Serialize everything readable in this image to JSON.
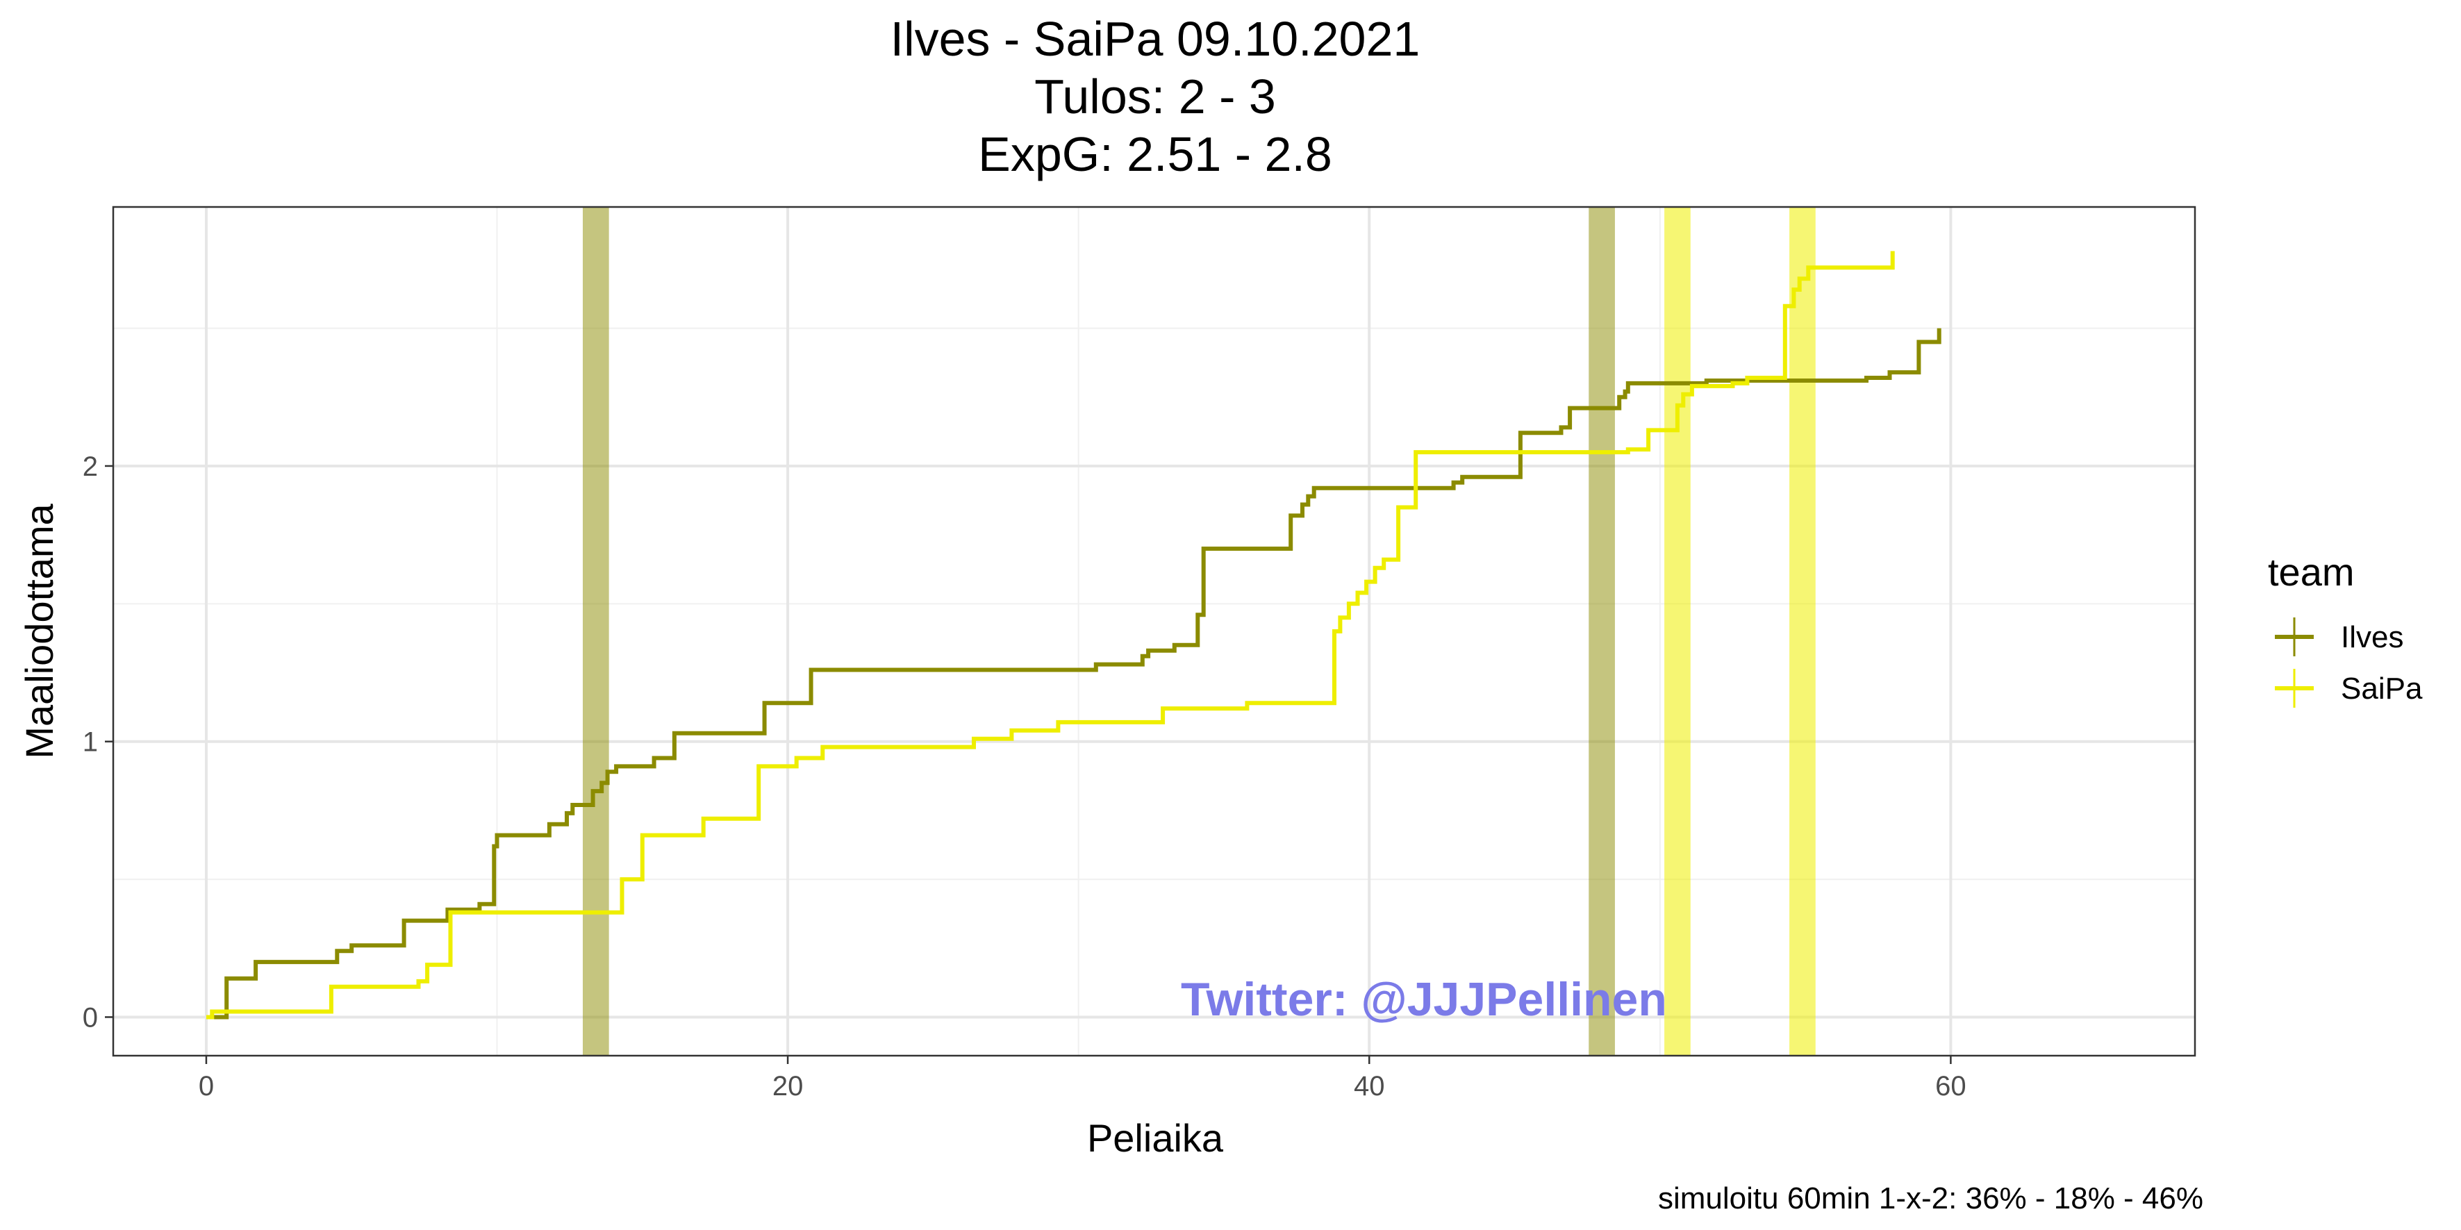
{
  "chart_data": {
    "type": "line",
    "step": true,
    "title_lines": [
      "Ilves - SaiPa 09.10.2021",
      "Tulos: 2 - 3",
      "ExpG: 2.51 - 2.8"
    ],
    "xlabel": "Peliaika",
    "ylabel": "Maaliodottama",
    "xlim": [
      -3.2,
      68.4
    ],
    "ylim": [
      -0.14,
      2.94
    ],
    "x_ticks": [
      0,
      20,
      40,
      60
    ],
    "y_ticks": [
      0,
      1,
      2
    ],
    "grid": true,
    "legend": {
      "title": "team",
      "position": "right",
      "entries": [
        "Ilves",
        "SaiPa"
      ]
    },
    "caption": "simuloitu 60min 1-x-2:  36% - 18% - 46%",
    "watermark": "Twitter: @JJJPellinen",
    "colors": {
      "Ilves": "#8b8b00",
      "SaiPa": "#eeee00"
    },
    "goal_bands": [
      {
        "team": "Ilves",
        "x": 13.4
      },
      {
        "team": "Ilves",
        "x": 48.0
      },
      {
        "team": "SaiPa",
        "x": 50.6
      },
      {
        "team": "SaiPa",
        "x": 54.9
      }
    ],
    "series": [
      {
        "name": "Ilves",
        "points": [
          [
            0.2,
            0.0
          ],
          [
            0.7,
            0.0
          ],
          [
            0.7,
            0.14
          ],
          [
            1.7,
            0.14
          ],
          [
            1.7,
            0.2
          ],
          [
            4.5,
            0.2
          ],
          [
            4.5,
            0.24
          ],
          [
            5.0,
            0.24
          ],
          [
            5.0,
            0.26
          ],
          [
            6.8,
            0.26
          ],
          [
            6.8,
            0.35
          ],
          [
            8.3,
            0.35
          ],
          [
            8.3,
            0.39
          ],
          [
            9.4,
            0.39
          ],
          [
            9.4,
            0.41
          ],
          [
            9.9,
            0.41
          ],
          [
            9.9,
            0.62
          ],
          [
            10.0,
            0.62
          ],
          [
            10.0,
            0.66
          ],
          [
            11.8,
            0.66
          ],
          [
            11.8,
            0.7
          ],
          [
            12.4,
            0.7
          ],
          [
            12.4,
            0.74
          ],
          [
            12.6,
            0.74
          ],
          [
            12.6,
            0.77
          ],
          [
            13.3,
            0.77
          ],
          [
            13.3,
            0.82
          ],
          [
            13.6,
            0.82
          ],
          [
            13.6,
            0.85
          ],
          [
            13.8,
            0.85
          ],
          [
            13.8,
            0.89
          ],
          [
            14.1,
            0.89
          ],
          [
            14.1,
            0.91
          ],
          [
            15.4,
            0.91
          ],
          [
            15.4,
            0.94
          ],
          [
            16.1,
            0.94
          ],
          [
            16.1,
            1.03
          ],
          [
            19.2,
            1.03
          ],
          [
            19.2,
            1.14
          ],
          [
            20.8,
            1.14
          ],
          [
            20.8,
            1.26
          ],
          [
            30.6,
            1.26
          ],
          [
            30.6,
            1.28
          ],
          [
            32.2,
            1.28
          ],
          [
            32.2,
            1.31
          ],
          [
            32.4,
            1.31
          ],
          [
            32.4,
            1.33
          ],
          [
            33.3,
            1.33
          ],
          [
            33.3,
            1.35
          ],
          [
            34.1,
            1.35
          ],
          [
            34.1,
            1.46
          ],
          [
            34.3,
            1.46
          ],
          [
            34.3,
            1.7
          ],
          [
            37.3,
            1.7
          ],
          [
            37.3,
            1.82
          ],
          [
            37.7,
            1.82
          ],
          [
            37.7,
            1.86
          ],
          [
            37.9,
            1.86
          ],
          [
            37.9,
            1.89
          ],
          [
            38.1,
            1.89
          ],
          [
            38.1,
            1.92
          ],
          [
            42.9,
            1.92
          ],
          [
            42.9,
            1.94
          ],
          [
            43.2,
            1.94
          ],
          [
            43.2,
            1.96
          ],
          [
            45.2,
            1.96
          ],
          [
            45.2,
            2.12
          ],
          [
            46.6,
            2.12
          ],
          [
            46.6,
            2.14
          ],
          [
            46.9,
            2.14
          ],
          [
            46.9,
            2.21
          ],
          [
            48.6,
            2.21
          ],
          [
            48.6,
            2.25
          ],
          [
            48.8,
            2.25
          ],
          [
            48.8,
            2.27
          ],
          [
            48.9,
            2.27
          ],
          [
            48.9,
            2.3
          ],
          [
            51.6,
            2.3
          ],
          [
            51.6,
            2.31
          ],
          [
            57.1,
            2.31
          ],
          [
            57.1,
            2.32
          ],
          [
            57.9,
            2.32
          ],
          [
            57.9,
            2.34
          ],
          [
            58.9,
            2.34
          ],
          [
            58.9,
            2.45
          ],
          [
            59.6,
            2.45
          ],
          [
            59.6,
            2.5
          ]
        ]
      },
      {
        "name": "SaiPa",
        "points": [
          [
            0.0,
            0.0
          ],
          [
            0.2,
            0.0
          ],
          [
            0.2,
            0.02
          ],
          [
            4.3,
            0.02
          ],
          [
            4.3,
            0.11
          ],
          [
            7.3,
            0.11
          ],
          [
            7.3,
            0.13
          ],
          [
            7.6,
            0.13
          ],
          [
            7.6,
            0.19
          ],
          [
            8.4,
            0.19
          ],
          [
            8.4,
            0.38
          ],
          [
            14.3,
            0.38
          ],
          [
            14.3,
            0.5
          ],
          [
            15.0,
            0.5
          ],
          [
            15.0,
            0.66
          ],
          [
            17.1,
            0.66
          ],
          [
            17.1,
            0.72
          ],
          [
            19.0,
            0.72
          ],
          [
            19.0,
            0.91
          ],
          [
            20.3,
            0.91
          ],
          [
            20.3,
            0.94
          ],
          [
            21.2,
            0.94
          ],
          [
            21.2,
            0.98
          ],
          [
            26.4,
            0.98
          ],
          [
            26.4,
            1.01
          ],
          [
            27.7,
            1.01
          ],
          [
            27.7,
            1.04
          ],
          [
            29.3,
            1.04
          ],
          [
            29.3,
            1.07
          ],
          [
            32.9,
            1.07
          ],
          [
            32.9,
            1.12
          ],
          [
            35.8,
            1.12
          ],
          [
            35.8,
            1.14
          ],
          [
            38.8,
            1.14
          ],
          [
            38.8,
            1.4
          ],
          [
            39.0,
            1.4
          ],
          [
            39.0,
            1.45
          ],
          [
            39.3,
            1.45
          ],
          [
            39.3,
            1.5
          ],
          [
            39.6,
            1.5
          ],
          [
            39.6,
            1.54
          ],
          [
            39.9,
            1.54
          ],
          [
            39.9,
            1.58
          ],
          [
            40.2,
            1.58
          ],
          [
            40.2,
            1.63
          ],
          [
            40.5,
            1.63
          ],
          [
            40.5,
            1.66
          ],
          [
            41.0,
            1.66
          ],
          [
            41.0,
            1.85
          ],
          [
            41.6,
            1.85
          ],
          [
            41.6,
            2.05
          ],
          [
            48.9,
            2.05
          ],
          [
            48.9,
            2.06
          ],
          [
            49.6,
            2.06
          ],
          [
            49.6,
            2.13
          ],
          [
            50.6,
            2.13
          ],
          [
            50.6,
            2.22
          ],
          [
            50.8,
            2.22
          ],
          [
            50.8,
            2.26
          ],
          [
            51.1,
            2.26
          ],
          [
            51.1,
            2.29
          ],
          [
            52.5,
            2.29
          ],
          [
            52.5,
            2.3
          ],
          [
            53.0,
            2.3
          ],
          [
            53.0,
            2.32
          ],
          [
            54.3,
            2.32
          ],
          [
            54.3,
            2.58
          ],
          [
            54.6,
            2.58
          ],
          [
            54.6,
            2.64
          ],
          [
            54.8,
            2.64
          ],
          [
            54.8,
            2.68
          ],
          [
            55.1,
            2.68
          ],
          [
            55.1,
            2.72
          ],
          [
            58.0,
            2.72
          ],
          [
            58.0,
            2.78
          ]
        ]
      }
    ]
  }
}
